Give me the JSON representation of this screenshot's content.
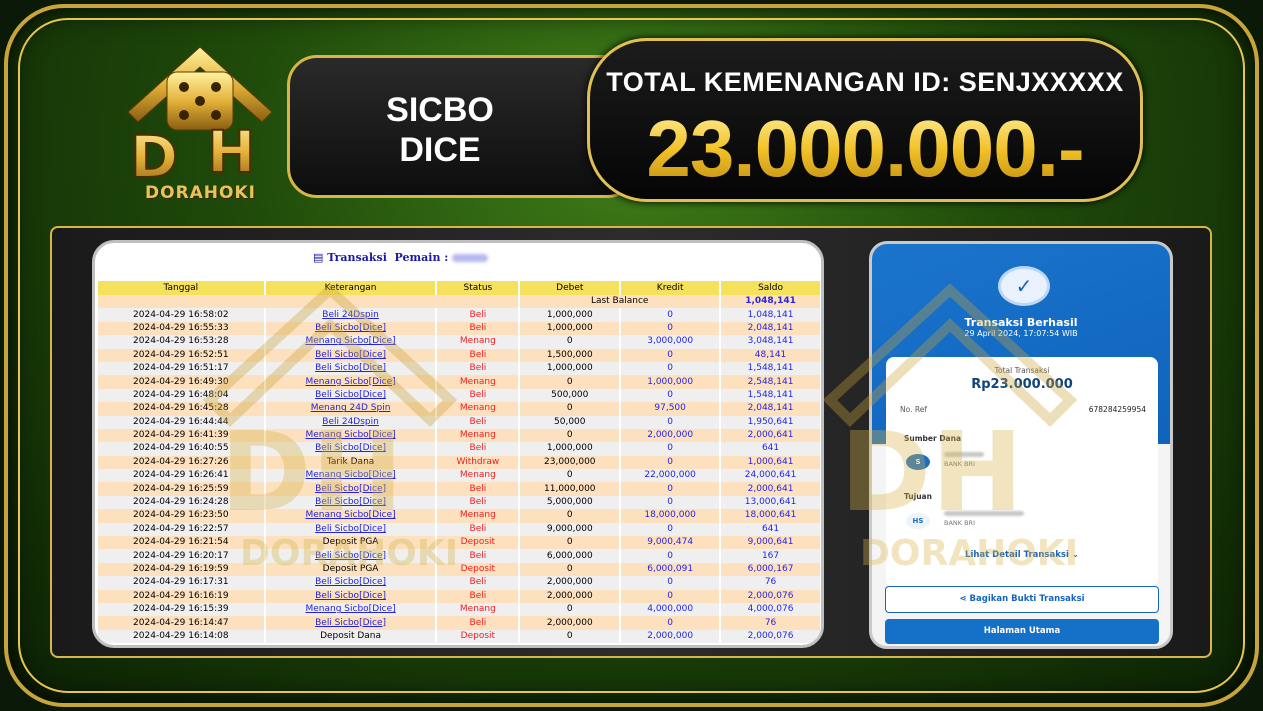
{
  "brand": {
    "name": "DORAHOKI",
    "logo_letters": "DH",
    "accent": "#e7c457"
  },
  "header": {
    "game_line1": "SICBO",
    "game_line2": "DICE",
    "total_label": "TOTAL KEMENANGAN ID: SENJXXXXX",
    "total_value": "23.000.000.-"
  },
  "ledger": {
    "title": "Transaksi",
    "player_label": "Pemain :",
    "columns": [
      "Tanggal",
      "Keterangan",
      "Status",
      "Debet",
      "Kredit",
      "Saldo"
    ],
    "last_balance_label": "Last Balance",
    "last_balance_value": "1,048,141",
    "rows": [
      [
        "2024-04-29 16:58:02",
        "Beli 24Dspin",
        "Beli",
        "1,000,000",
        "0",
        "1,048,141"
      ],
      [
        "2024-04-29 16:55:33",
        "Beli Sicbo[Dice]",
        "Beli",
        "1,000,000",
        "0",
        "2,048,141"
      ],
      [
        "2024-04-29 16:53:28",
        "Menang Sicbo[Dice]",
        "Menang",
        "0",
        "3,000,000",
        "3,048,141"
      ],
      [
        "2024-04-29 16:52:51",
        "Beli Sicbo[Dice]",
        "Beli",
        "1,500,000",
        "0",
        "48,141"
      ],
      [
        "2024-04-29 16:51:17",
        "Beli Sicbo[Dice]",
        "Beli",
        "1,000,000",
        "0",
        "1,548,141"
      ],
      [
        "2024-04-29 16:49:30",
        "Menang Sicbo[Dice]",
        "Menang",
        "0",
        "1,000,000",
        "2,548,141"
      ],
      [
        "2024-04-29 16:48:04",
        "Beli Sicbo[Dice]",
        "Beli",
        "500,000",
        "0",
        "1,548,141"
      ],
      [
        "2024-04-29 16:45:28",
        "Menang 24D Spin",
        "Menang",
        "0",
        "97,500",
        "2,048,141"
      ],
      [
        "2024-04-29 16:44:44",
        "Beli 24Dspin",
        "Beli",
        "50,000",
        "0",
        "1,950,641"
      ],
      [
        "2024-04-29 16:41:39",
        "Menang Sicbo[Dice]",
        "Menang",
        "0",
        "2,000,000",
        "2,000,641"
      ],
      [
        "2024-04-29 16:40:55",
        "Beli Sicbo[Dice]",
        "Beli",
        "1,000,000",
        "0",
        "641"
      ],
      [
        "2024-04-29 16:27:26",
        "Tarik Dana",
        "Withdraw",
        "23,000,000",
        "0",
        "1,000,641"
      ],
      [
        "2024-04-29 16:26:41",
        "Menang Sicbo[Dice]",
        "Menang",
        "0",
        "22,000,000",
        "24,000,641"
      ],
      [
        "2024-04-29 16:25:59",
        "Beli Sicbo[Dice]",
        "Beli",
        "11,000,000",
        "0",
        "2,000,641"
      ],
      [
        "2024-04-29 16:24:28",
        "Beli Sicbo[Dice]",
        "Beli",
        "5,000,000",
        "0",
        "13,000,641"
      ],
      [
        "2024-04-29 16:23:50",
        "Menang Sicbo[Dice]",
        "Menang",
        "0",
        "18,000,000",
        "18,000,641"
      ],
      [
        "2024-04-29 16:22:57",
        "Beli Sicbo[Dice]",
        "Beli",
        "9,000,000",
        "0",
        "641"
      ],
      [
        "2024-04-29 16:21:54",
        "Deposit PGA",
        "Deposit",
        "0",
        "9,000,474",
        "9,000,641"
      ],
      [
        "2024-04-29 16:20:17",
        "Beli Sicbo[Dice]",
        "Beli",
        "6,000,000",
        "0",
        "167"
      ],
      [
        "2024-04-29 16:19:59",
        "Deposit PGA",
        "Deposit",
        "0",
        "6,000,091",
        "6,000,167"
      ],
      [
        "2024-04-29 16:17:31",
        "Beli Sicbo[Dice]",
        "Beli",
        "2,000,000",
        "0",
        "76"
      ],
      [
        "2024-04-29 16:16:19",
        "Beli Sicbo[Dice]",
        "Beli",
        "2,000,000",
        "0",
        "2,000,076"
      ],
      [
        "2024-04-29 16:15:39",
        "Menang Sicbo[Dice]",
        "Menang",
        "0",
        "4,000,000",
        "4,000,076"
      ],
      [
        "2024-04-29 16:14:47",
        "Beli Sicbo[Dice]",
        "Beli",
        "2,000,000",
        "0",
        "76"
      ],
      [
        "2024-04-29 16:14:08",
        "Deposit Dana",
        "Deposit",
        "0",
        "2,000,000",
        "2,000,076"
      ]
    ]
  },
  "receipt": {
    "status": "Transaksi Berhasil",
    "datetime": "29 April 2024, 17:07:54 WIB",
    "total_label": "Total Transaksi",
    "total_value": "Rp23.000.000",
    "ref_label": "No. Ref",
    "ref_value": "678284259954",
    "source_label": "Sumber Dana",
    "source_initial": "S",
    "source_bank": "BANK BRI",
    "dest_label": "Tujuan",
    "dest_initial": "HS",
    "dest_bank": "BANK BRI",
    "detail_link": "Lihat Detail Transaksi ⌄",
    "share_button": "Bagikan Bukti Transaksi",
    "home_button": "Halaman Utama",
    "accent": "#1570c8"
  }
}
